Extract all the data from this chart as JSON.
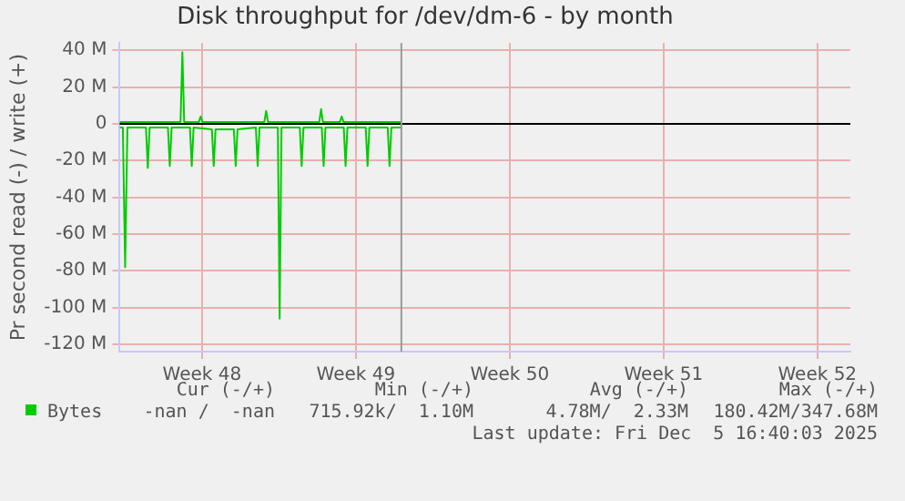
{
  "chart_data": {
    "type": "line",
    "title": "Disk throughput for /dev/dm-6 - by month",
    "ylabel": "Pr second read (-) / write (+)",
    "xlim": [
      "2025-11-22T21:00",
      "2025-12-26T03:00"
    ],
    "xticks": [
      {
        "value": "2025-11-26T15:00",
        "label": "Week 48"
      },
      {
        "value": "2025-12-03T15:00",
        "label": "Week 49"
      },
      {
        "value": "2025-12-10T15:00",
        "label": "Week 50"
      },
      {
        "value": "2025-12-17T15:00",
        "label": "Week 51"
      },
      {
        "value": "2025-12-24T15:00",
        "label": "Week 52"
      }
    ],
    "ylim": [
      -124,
      44
    ],
    "yticks": [
      {
        "value": 40,
        "label": "40 M"
      },
      {
        "value": 20,
        "label": "20 M"
      },
      {
        "value": 0,
        "label": "0"
      },
      {
        "value": -20,
        "label": "-20 M"
      },
      {
        "value": -40,
        "label": "-40 M"
      },
      {
        "value": -60,
        "label": "-60 M"
      },
      {
        "value": -80,
        "label": "-80 M"
      },
      {
        "value": -100,
        "label": "-100 M"
      },
      {
        "value": -120,
        "label": "-120 M"
      }
    ],
    "series": [
      {
        "name": "Bytes",
        "color": "#00cc00",
        "x": [
          "2025-11-22T21:00",
          "2025-11-23T00:30",
          "2025-11-23T03:00",
          "2025-11-23T05:30",
          "2025-11-24T01:45",
          "2025-11-24T03:45",
          "2025-11-24T05:45",
          "2025-11-25T01:45",
          "2025-11-25T03:45",
          "2025-11-25T05:45",
          "2025-11-26T01:45",
          "2025-11-26T03:45",
          "2025-11-26T05:45",
          "2025-11-27T01:45",
          "2025-11-27T03:45",
          "2025-11-27T05:45",
          "2025-11-28T01:45",
          "2025-11-28T03:45",
          "2025-11-28T05:45",
          "2025-11-29T01:45",
          "2025-11-29T03:45",
          "2025-11-29T05:45",
          "2025-11-30T01:45",
          "2025-11-30T03:45",
          "2025-11-30T05:45",
          "2025-12-01T01:45",
          "2025-12-01T03:45",
          "2025-12-01T05:45",
          "2025-12-02T01:45",
          "2025-12-02T03:45",
          "2025-12-02T05:45",
          "2025-12-03T01:45",
          "2025-12-03T03:45",
          "2025-12-03T05:45",
          "2025-12-04T01:45",
          "2025-12-04T03:45",
          "2025-12-04T05:45",
          "2025-12-05T01:45",
          "2025-12-05T03:45",
          "2025-12-05T05:45",
          "2025-12-05T16:40"
        ],
        "values": [
          -2,
          -2,
          -78,
          -2,
          -2,
          -24,
          -2,
          -2,
          -23,
          -2,
          -2,
          -23,
          -2,
          -3,
          -23,
          -3,
          -3,
          -23,
          -3,
          -2,
          -23,
          -2,
          -2,
          -106,
          -2,
          -2,
          -23,
          -2,
          -2,
          -23,
          -2,
          -2,
          -23,
          -2,
          -2,
          -23,
          -2,
          -2,
          -23,
          -2,
          -2
        ]
      },
      {
        "color": "#00cc00",
        "x": [
          "2025-11-22T21:00",
          "2025-11-25T15:30",
          "2025-11-25T17:30",
          "2025-11-25T19:30",
          "2025-11-26T11:30",
          "2025-11-26T13:30",
          "2025-11-26T15:30",
          "2025-11-29T11:00",
          "2025-11-29T13:00",
          "2025-11-29T15:00",
          "2025-12-01T23:00",
          "2025-12-02T01:00",
          "2025-12-02T03:00",
          "2025-12-02T21:30",
          "2025-12-02T23:30",
          "2025-12-03T01:30",
          "2025-12-05T16:40"
        ],
        "values": [
          1,
          1,
          39,
          1,
          1,
          4,
          1,
          1,
          7,
          1,
          1,
          8,
          1,
          1,
          4,
          1,
          1
        ]
      }
    ],
    "ref_lines": [
      {
        "axis": "y",
        "value": 0,
        "color": "#000000"
      },
      {
        "axis": "x",
        "value": "2025-12-05T16:40",
        "color": "#999999"
      }
    ],
    "grid": true,
    "legend": "bottom left",
    "marker": "none",
    "line_style": "solid",
    "annotations": [
      "Cur (-/+)",
      "Min (-/+)",
      "Avg (-/+)",
      "Max (-/+)",
      "-nan /  -nan",
      "715.92k/  1.10M",
      "4.78M/  2.33M",
      "180.42M/347.68M",
      "Last update: Fri Dec  5 16:40:03 2025"
    ]
  }
}
